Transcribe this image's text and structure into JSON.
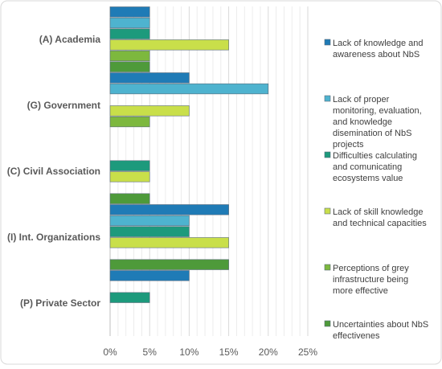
{
  "chart_data": {
    "type": "bar",
    "orientation": "horizontal",
    "categories": [
      "(A) Academia",
      "(G) Government",
      "(C) Civil Association",
      "(I) Int. Organizations",
      "(P) Private Sector"
    ],
    "series": [
      {
        "name": "Lack of knowledge and awareness about NbS",
        "color": "#1f7bb6",
        "values": [
          5,
          10,
          0,
          15,
          10
        ]
      },
      {
        "name": "Lack of proper monitoring, evaluation, and knowledge disemination of NbS projects",
        "color": "#4eb3cf",
        "values": [
          5,
          20,
          0,
          10,
          0
        ]
      },
      {
        "name": "Difficulties calculating and comunicating ecosystems value",
        "color": "#1d9a7c",
        "values": [
          5,
          0,
          5,
          10,
          5
        ]
      },
      {
        "name": "Lack of skill knowledge and technical capacities",
        "color": "#c9df4a",
        "values": [
          15,
          10,
          5,
          15,
          0
        ]
      },
      {
        "name": "Perceptions of grey infrastructure being more effective",
        "color": "#7db83e",
        "values": [
          5,
          5,
          0,
          0,
          0
        ]
      },
      {
        "name": "Uncertainties about NbS effectivenes",
        "color": "#4e9a3a",
        "values": [
          5,
          0,
          5,
          15,
          0
        ]
      }
    ],
    "x_ticks": [
      "0%",
      "5%",
      "10%",
      "15%",
      "20%",
      "25%"
    ],
    "xlim": [
      0,
      25
    ],
    "grid": true,
    "legend_position": "right",
    "title": "",
    "xlabel": "",
    "ylabel": ""
  }
}
